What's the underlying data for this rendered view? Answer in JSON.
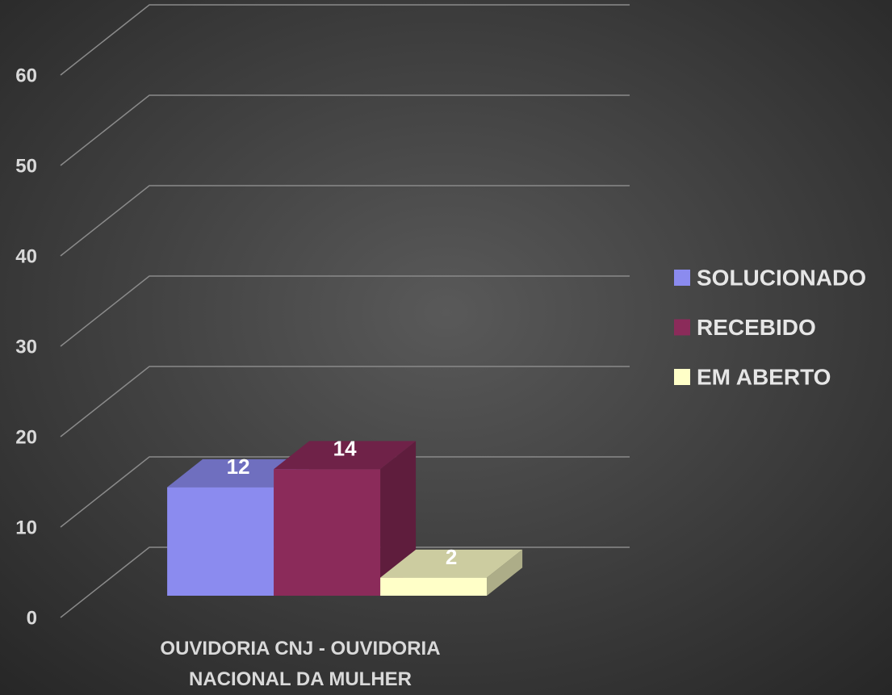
{
  "chart_data": {
    "type": "bar3d",
    "categories": [
      "OUVIDORIA CNJ - OUVIDORIA NACIONAL DA MULHER"
    ],
    "series": [
      {
        "name": "SOLUCIONADO",
        "color": "#8b8bef",
        "values": [
          12
        ]
      },
      {
        "name": "RECEBIDO",
        "color": "#8b2b5a",
        "values": [
          14
        ]
      },
      {
        "name": "EM ABERTO",
        "color": "#ffffc8",
        "values": [
          2
        ]
      }
    ],
    "ylim": [
      0,
      60
    ],
    "yticks": [
      0,
      10,
      20,
      30,
      40,
      50,
      60
    ],
    "grid": true,
    "legend": "right"
  }
}
